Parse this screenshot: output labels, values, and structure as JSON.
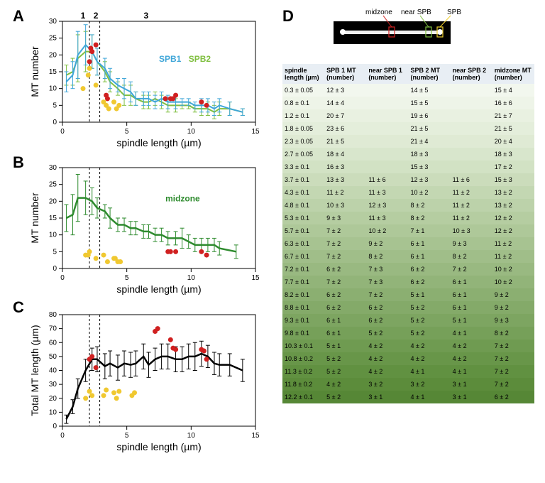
{
  "panelA": {
    "label": "A",
    "phase_labels": [
      "1",
      "2",
      "3"
    ],
    "phase_x": [
      1.6,
      2.6,
      6.5
    ],
    "legend1": "SPB1",
    "legend1_color": "#3fa6d8",
    "legend2": "SPB2",
    "legend2_color": "#7fbf3f",
    "xlabel": "spindle length (µm)",
    "ylabel": "MT number",
    "xlim": [
      0,
      15
    ],
    "xticks": [
      0,
      5,
      10,
      15
    ],
    "ylim": [
      0,
      30
    ],
    "yticks": [
      0,
      5,
      10,
      15,
      20,
      25,
      30
    ],
    "spb1_x": [
      0.3,
      0.8,
      1.2,
      1.8,
      2.3,
      2.7,
      3.3,
      3.7,
      4.3,
      4.8,
      5.3,
      5.7,
      6.3,
      6.7,
      7.2,
      7.7,
      8.2,
      8.8,
      9.3,
      9.8,
      10.3,
      10.8,
      11.3,
      11.8,
      12.2,
      13.0,
      14.0
    ],
    "spb1_y": [
      12,
      14,
      20,
      23,
      21,
      18,
      16,
      13,
      11,
      10,
      9,
      7,
      7,
      7,
      6,
      7,
      6,
      6,
      6,
      6,
      5,
      5,
      5,
      4,
      5,
      4,
      3
    ],
    "spb1_err": [
      3,
      4,
      7,
      6,
      5,
      4,
      3,
      3,
      2,
      3,
      3,
      2,
      2,
      2,
      2,
      2,
      2,
      2,
      1,
      1,
      1,
      2,
      2,
      2,
      2,
      2,
      1
    ],
    "spb2_x": [
      0.3,
      0.8,
      1.2,
      1.8,
      2.3,
      2.7,
      3.3,
      3.7,
      4.3,
      4.8,
      5.3,
      5.7,
      6.3,
      6.7,
      7.2,
      7.7,
      8.2,
      8.8,
      9.3,
      9.8,
      10.3,
      10.8,
      11.3,
      11.8,
      12.2,
      13.0,
      14.0
    ],
    "spb2_y": [
      14,
      15,
      19,
      21,
      21,
      18,
      15,
      12,
      10,
      8,
      8,
      7,
      6,
      6,
      7,
      6,
      5,
      5,
      5,
      5,
      4,
      4,
      4,
      3,
      4,
      4,
      3
    ],
    "red_pts": [
      [
        2.1,
        18
      ],
      [
        2.2,
        22
      ],
      [
        2.3,
        21
      ],
      [
        2.6,
        23
      ],
      [
        3.4,
        8
      ],
      [
        3.5,
        7
      ],
      [
        8.0,
        7
      ],
      [
        8.4,
        7
      ],
      [
        8.6,
        7
      ],
      [
        8.8,
        8
      ],
      [
        10.8,
        6
      ],
      [
        11.2,
        5
      ]
    ],
    "yellow_pts": [
      [
        1.6,
        10
      ],
      [
        2.0,
        14
      ],
      [
        2.1,
        16
      ],
      [
        2.6,
        11
      ],
      [
        3.2,
        6
      ],
      [
        3.4,
        5
      ],
      [
        3.6,
        4
      ],
      [
        4.2,
        4
      ],
      [
        4.0,
        6
      ],
      [
        4.4,
        5
      ]
    ],
    "vlines": [
      2.1,
      2.9
    ]
  },
  "panelB": {
    "label": "B",
    "legend": "midzone",
    "legend_color": "#2e8b2e",
    "xlabel": "spindle length (µm)",
    "ylabel": "MT number",
    "xlim": [
      0,
      15
    ],
    "xticks": [
      0,
      5,
      10,
      15
    ],
    "ylim": [
      0,
      30
    ],
    "yticks": [
      0,
      5,
      10,
      15,
      20,
      25,
      30
    ],
    "mid_x": [
      0.3,
      0.8,
      1.2,
      1.8,
      2.3,
      2.7,
      3.3,
      3.7,
      4.3,
      4.8,
      5.3,
      5.7,
      6.3,
      6.7,
      7.2,
      7.7,
      8.2,
      8.8,
      9.3,
      9.8,
      10.3,
      10.8,
      11.3,
      11.8,
      12.2,
      13.5
    ],
    "mid_y": [
      15,
      16,
      21,
      21,
      20,
      18,
      17,
      15,
      13,
      13,
      12,
      12,
      11,
      11,
      10,
      10,
      9,
      9,
      9,
      8,
      7,
      7,
      7,
      7,
      6,
      5
    ],
    "mid_err": [
      4,
      6,
      7,
      5,
      4,
      3,
      2,
      3,
      2,
      2,
      2,
      2,
      2,
      2,
      2,
      2,
      2,
      2,
      3,
      2,
      2,
      2,
      2,
      2,
      2,
      2
    ],
    "yellow_pts": [
      [
        1.8,
        4
      ],
      [
        2.1,
        5
      ],
      [
        2.0,
        4
      ],
      [
        2.6,
        3
      ],
      [
        3.2,
        4
      ],
      [
        3.5,
        2
      ],
      [
        4.0,
        3
      ],
      [
        4.3,
        2
      ],
      [
        4.1,
        3
      ],
      [
        4.5,
        2
      ]
    ],
    "red_pts": [
      [
        8.2,
        5
      ],
      [
        8.4,
        5
      ],
      [
        8.8,
        5
      ],
      [
        10.8,
        5
      ],
      [
        11.2,
        4
      ]
    ],
    "vlines": [
      2.1,
      2.9
    ]
  },
  "panelC": {
    "label": "C",
    "xlabel": "spindle length (µm)",
    "ylabel": "Total MT length (µm)",
    "xlim": [
      0,
      15
    ],
    "xticks": [
      0,
      5,
      10,
      15
    ],
    "ylim": [
      0,
      80
    ],
    "yticks": [
      0,
      10,
      20,
      30,
      40,
      50,
      60,
      70,
      80
    ],
    "line_color": "#000000",
    "tot_x": [
      0.3,
      0.8,
      1.2,
      1.8,
      2.3,
      2.7,
      3.3,
      3.7,
      4.3,
      4.8,
      5.3,
      5.7,
      6.3,
      6.7,
      7.2,
      7.7,
      8.2,
      8.8,
      9.3,
      9.8,
      10.3,
      10.8,
      11.3,
      11.8,
      12.2,
      13.0,
      14.0
    ],
    "tot_y": [
      5,
      14,
      27,
      40,
      48,
      48,
      43,
      45,
      42,
      45,
      44,
      45,
      50,
      44,
      48,
      50,
      50,
      48,
      48,
      50,
      50,
      52,
      50,
      45,
      44,
      44,
      40
    ],
    "tot_err": [
      3,
      5,
      7,
      8,
      8,
      9,
      9,
      9,
      9,
      9,
      9,
      9,
      9,
      9,
      8,
      9,
      9,
      9,
      9,
      9,
      10,
      9,
      8,
      8,
      8,
      8,
      8
    ],
    "red_pts": [
      [
        2.1,
        48
      ],
      [
        2.3,
        50
      ],
      [
        2.6,
        42
      ],
      [
        7.2,
        68
      ],
      [
        7.4,
        70
      ],
      [
        8.6,
        56
      ],
      [
        8.8,
        55
      ],
      [
        8.4,
        62
      ],
      [
        10.8,
        55
      ],
      [
        11.0,
        54
      ],
      [
        11.2,
        48
      ]
    ],
    "yellow_pts": [
      [
        1.8,
        20
      ],
      [
        2.1,
        25
      ],
      [
        2.3,
        22
      ],
      [
        3.2,
        22
      ],
      [
        3.4,
        26
      ],
      [
        4.0,
        24
      ],
      [
        4.2,
        20
      ],
      [
        4.4,
        25
      ],
      [
        5.4,
        22
      ],
      [
        5.6,
        24
      ]
    ],
    "vlines": [
      2.1,
      2.9
    ]
  },
  "panelD": {
    "label": "D",
    "img_labels": {
      "midzone": "midzone",
      "near": "near SPB",
      "spb": "SPB"
    },
    "img_label_colors": {
      "midzone": "#d02020",
      "near": "#7fbf3f",
      "spb": "#f0d030"
    },
    "headers": [
      "spindle length (µm)",
      "SPB 1 MT (number)",
      "near SPB 1 (number)",
      "SPB 2 MT (number)",
      "near SPB 2 (number)",
      "midzone MT (number)"
    ],
    "rows": [
      [
        "0.3 ± 0.05",
        "12 ± 3",
        "",
        "14 ± 5",
        "",
        "15 ± 4"
      ],
      [
        "0.8 ± 0.1",
        "14 ± 4",
        "",
        "15 ± 5",
        "",
        "16 ± 6"
      ],
      [
        "1.2 ± 0.1",
        "20 ± 7",
        "",
        "19 ± 6",
        "",
        "21 ± 7"
      ],
      [
        "1.8 ± 0.05",
        "23 ± 6",
        "",
        "21 ± 5",
        "",
        "21 ± 5"
      ],
      [
        "2.3 ± 0.05",
        "21 ± 5",
        "",
        "21 ± 4",
        "",
        "20 ± 4"
      ],
      [
        "2.7 ± 0.05",
        "18 ± 4",
        "",
        "18 ± 3",
        "",
        "18 ± 3"
      ],
      [
        "3.3 ± 0.1",
        "16 ± 3",
        "",
        "15 ± 3",
        "",
        "17 ± 2"
      ],
      [
        "3.7 ± 0.1",
        "13 ± 3",
        "11 ± 6",
        "12 ± 3",
        "11 ± 6",
        "15 ± 3"
      ],
      [
        "4.3 ± 0.1",
        "11 ± 2",
        "11 ± 3",
        "10 ± 2",
        "11 ± 2",
        "13 ± 2"
      ],
      [
        "4.8 ± 0.1",
        "10 ± 3",
        "12 ± 3",
        "8 ± 2",
        "11 ± 2",
        "13 ± 2"
      ],
      [
        "5.3 ± 0.1",
        "9 ± 3",
        "11 ± 3",
        "8 ± 2",
        "11 ± 2",
        "12 ± 2"
      ],
      [
        "5.7 ± 0.1",
        "7 ± 2",
        "10 ± 2",
        "7 ± 1",
        "10 ± 3",
        "12 ± 2"
      ],
      [
        "6.3 ± 0.1",
        "7 ± 2",
        "9 ± 2",
        "6 ± 1",
        "9 ± 3",
        "11 ± 2"
      ],
      [
        "6.7 ± 0.1",
        "7 ± 2",
        "8 ± 2",
        "6 ± 1",
        "8 ± 2",
        "11 ± 2"
      ],
      [
        "7.2 ± 0.1",
        "6 ± 2",
        "7 ± 3",
        "6 ± 2",
        "7 ± 2",
        "10 ± 2"
      ],
      [
        "7.7 ± 0.1",
        "7 ± 2",
        "7 ± 3",
        "6 ± 2",
        "6 ± 1",
        "10 ± 2"
      ],
      [
        "8.2 ± 0.1",
        "6 ± 2",
        "7 ± 2",
        "5 ± 1",
        "6 ± 1",
        "9 ± 2"
      ],
      [
        "8.8 ± 0.1",
        "6 ± 2",
        "6 ± 2",
        "5 ± 2",
        "6 ± 1",
        "9 ± 2"
      ],
      [
        "9.3 ± 0.1",
        "6 ± 1",
        "6 ± 2",
        "5 ± 2",
        "5 ± 1",
        "9 ± 3"
      ],
      [
        "9.8 ± 0.1",
        "6 ± 1",
        "5 ± 2",
        "5 ± 2",
        "4 ± 1",
        "8 ± 2"
      ],
      [
        "10.3 ± 0.1",
        "5 ± 1",
        "4 ± 2",
        "4 ± 2",
        "4 ± 2",
        "7 ± 2"
      ],
      [
        "10.8 ± 0.2",
        "5 ± 2",
        "4 ± 2",
        "4 ± 2",
        "4 ± 2",
        "7 ± 2"
      ],
      [
        "11.3 ± 0.2",
        "5 ± 2",
        "4 ± 2",
        "4 ± 1",
        "4 ± 1",
        "7 ± 2"
      ],
      [
        "11.8 ± 0.2",
        "4 ± 2",
        "3 ± 2",
        "3 ± 2",
        "3 ± 1",
        "7 ± 2"
      ],
      [
        "12.2 ± 0.1",
        "5 ± 2",
        "3 ± 1",
        "4 ± 1",
        "3 ± 1",
        "6 ± 2"
      ]
    ],
    "row_colors": [
      "#f2f7ee",
      "#eef4e8",
      "#e9f1e1",
      "#e4eedb",
      "#dfead4",
      "#d8e6cc",
      "#d2e2c4",
      "#cbdcbb",
      "#c3d7b2",
      "#bcd2aa",
      "#b5cda1",
      "#aec899",
      "#a7c391",
      "#a0be89",
      "#99b981",
      "#92b479",
      "#8baf71",
      "#84aa69",
      "#7da561",
      "#76a059",
      "#6f9b51",
      "#689649",
      "#619141",
      "#5c8c3b",
      "#568736"
    ]
  }
}
